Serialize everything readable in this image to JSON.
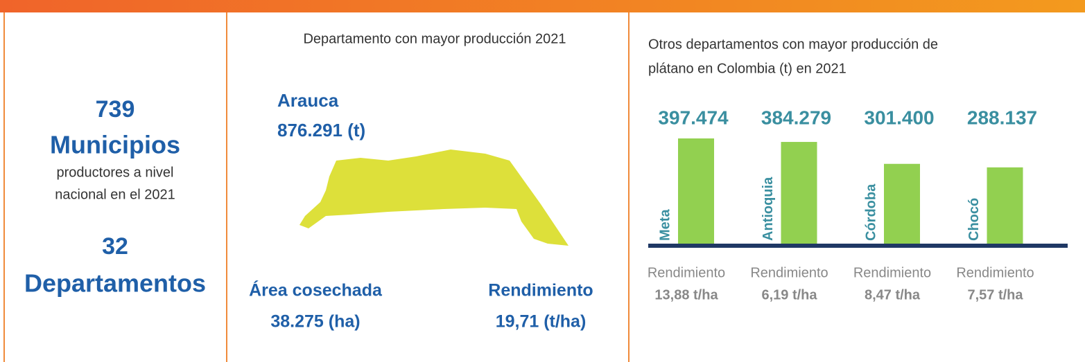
{
  "summary": {
    "municipios_count": "739",
    "municipios_label": "Municipios",
    "municipios_note": [
      "productores a nivel",
      "nacional en el 2021"
    ],
    "departamentos_count": "32",
    "departamentos_label": "Departamentos"
  },
  "top_department": {
    "heading": "Departamento con mayor producción 2021",
    "name": "Arauca",
    "production": "876.291 (t)",
    "area_label": "Área cosechada",
    "area_value": "38.275 (ha)",
    "yield_label": "Rendimiento",
    "yield_value": "19,71 (t/ha)"
  },
  "chart_data": {
    "type": "bar",
    "title": [
      "Otros departamentos con mayor producción de",
      "plátano en Colombia (t) en 2021"
    ],
    "categories": [
      "Meta",
      "Antioquia",
      "Córdoba",
      "Chocó"
    ],
    "values": [
      397474,
      384279,
      301400,
      288137
    ],
    "value_labels": [
      "397.474",
      "384.279",
      "301.400",
      "288.137"
    ],
    "color": "#92d050",
    "yield_labels": [
      "Rendimiento",
      "Rendimiento",
      "Rendimiento",
      "Rendimiento"
    ],
    "yields": [
      "13,88 t/ha",
      "6,19 t/ha",
      "8,47 t/ha",
      "7,57 t/ha"
    ]
  }
}
